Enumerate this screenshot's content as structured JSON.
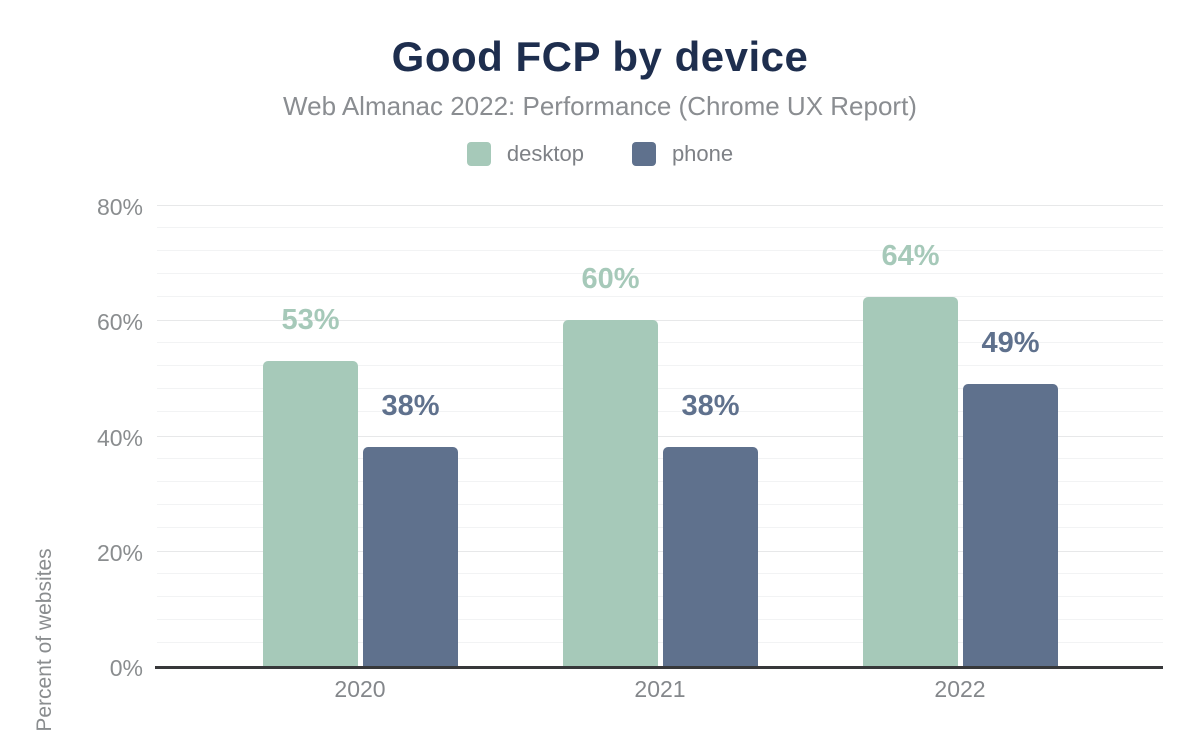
{
  "chart_data": {
    "type": "bar",
    "title": "Good FCP by device",
    "subtitle": "Web Almanac 2022: Performance (Chrome UX Report)",
    "ylabel": "Percent of websites",
    "xlabel": "",
    "categories": [
      "2020",
      "2021",
      "2022"
    ],
    "series": [
      {
        "name": "desktop",
        "color": "#a6c9b9",
        "values": [
          53,
          60,
          64
        ]
      },
      {
        "name": "phone",
        "color": "#5f718d",
        "values": [
          38,
          38,
          49
        ]
      }
    ],
    "data_labels": [
      [
        "53%",
        "60%",
        "64%"
      ],
      [
        "38%",
        "38%",
        "49%"
      ]
    ],
    "ylim": [
      0,
      80
    ],
    "yticks": [
      0,
      20,
      40,
      60,
      80
    ],
    "ytick_labels": [
      "0%",
      "20%",
      "40%",
      "60%",
      "80%"
    ],
    "minor_grid_step": 4,
    "grid": true,
    "legend_position": "top"
  },
  "colors": {
    "title": "#1e2e4e",
    "subtitle": "#8a8d91",
    "legend_text": "#7e8186",
    "tick_label": "#8a8d8f",
    "axis_line": "#37383a",
    "grid_major": "#e7e8e9",
    "grid_minor": "#f2f3f4",
    "background": "#ffffff"
  }
}
